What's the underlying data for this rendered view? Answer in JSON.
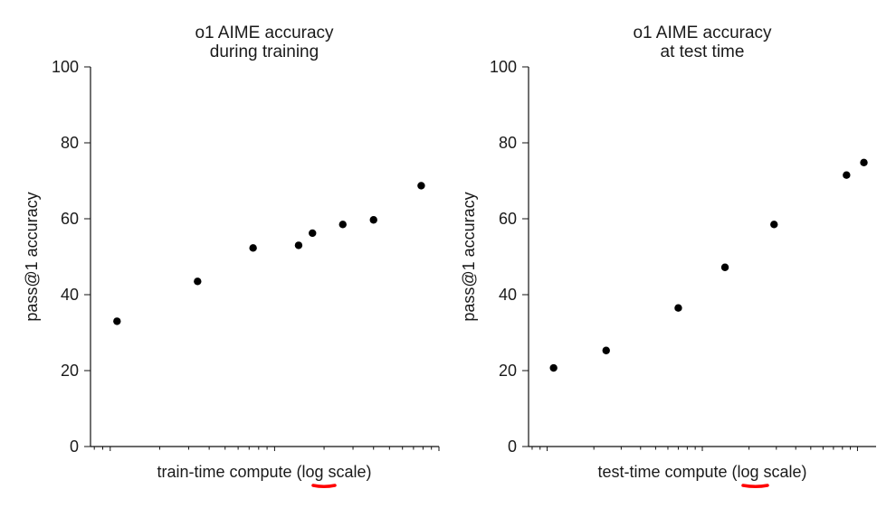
{
  "chart_data": [
    {
      "type": "scatter",
      "title": [
        "o1 AIME accuracy",
        "during training"
      ],
      "xlabel": "train-time compute (log scale)",
      "ylabel": "pass@1 accuracy",
      "x_scale": "log",
      "x_tick_labels": false,
      "ylim": [
        0,
        100
      ],
      "yticks": [
        0,
        20,
        40,
        60,
        80,
        100
      ],
      "grid": false,
      "legend": "none",
      "points": [
        {
          "x": 1.1,
          "y": 33
        },
        {
          "x": 3.4,
          "y": 43.5
        },
        {
          "x": 7.4,
          "y": 52.3
        },
        {
          "x": 14.0,
          "y": 53
        },
        {
          "x": 17.0,
          "y": 56.2
        },
        {
          "x": 26.0,
          "y": 58.5
        },
        {
          "x": 40.0,
          "y": 59.7
        },
        {
          "x": 78.0,
          "y": 68.7
        }
      ],
      "annotation": {
        "underlined_text": "log",
        "color": "#ff0000"
      }
    },
    {
      "type": "scatter",
      "title": [
        "o1 AIME accuracy",
        "at test time"
      ],
      "xlabel": "test-time compute (log scale)",
      "ylabel": "pass@1 accuracy",
      "x_scale": "log",
      "x_tick_labels": false,
      "ylim": [
        0,
        100
      ],
      "yticks": [
        0,
        20,
        40,
        60,
        80,
        100
      ],
      "grid": false,
      "legend": "none",
      "points": [
        {
          "x": 1.1,
          "y": 20.7
        },
        {
          "x": 2.4,
          "y": 25.3
        },
        {
          "x": 7.0,
          "y": 36.5
        },
        {
          "x": 14.0,
          "y": 47.2
        },
        {
          "x": 29.0,
          "y": 58.5
        },
        {
          "x": 85.0,
          "y": 71.5
        },
        {
          "x": 110.0,
          "y": 74.8
        }
      ],
      "annotation": {
        "underlined_text": "log",
        "color": "#ff0000"
      }
    }
  ]
}
